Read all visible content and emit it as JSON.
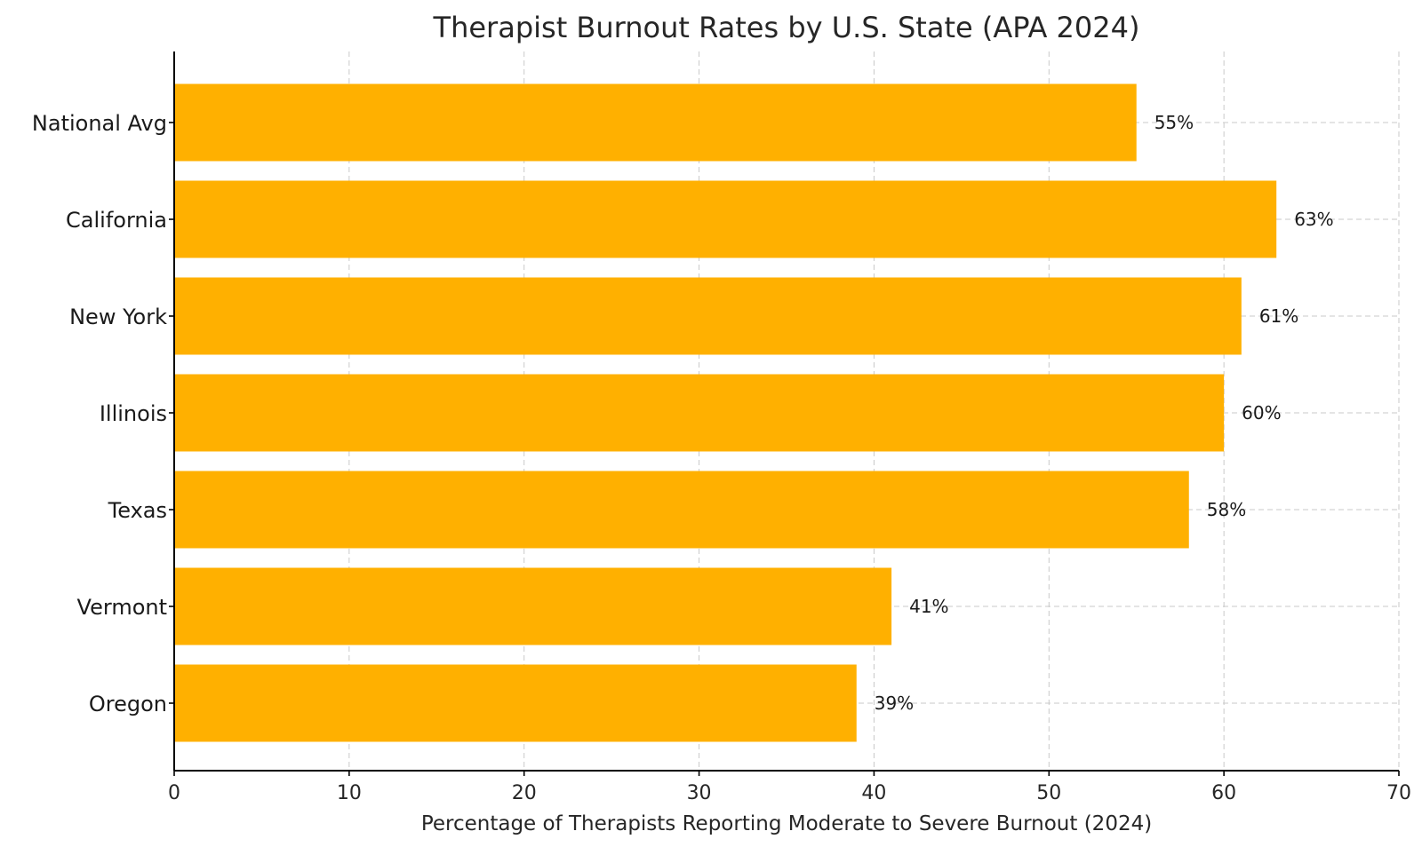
{
  "chart_data": {
    "type": "bar",
    "orientation": "horizontal",
    "title": "Therapist Burnout Rates by U.S. State (APA 2024)",
    "xlabel": "Percentage of Therapists Reporting Moderate to Severe Burnout (2024)",
    "ylabel": "",
    "categories": [
      "National Avg",
      "California",
      "New York",
      "Illinois",
      "Texas",
      "Vermont",
      "Oregon"
    ],
    "values": [
      55,
      63,
      61,
      60,
      58,
      41,
      39
    ],
    "data_labels": [
      "55%",
      "63%",
      "61%",
      "60%",
      "58%",
      "41%",
      "39%"
    ],
    "xlim": [
      0,
      70
    ],
    "xticks": [
      0,
      10,
      20,
      30,
      40,
      50,
      60,
      70
    ],
    "grid": true,
    "bar_color": "#FFB000"
  }
}
